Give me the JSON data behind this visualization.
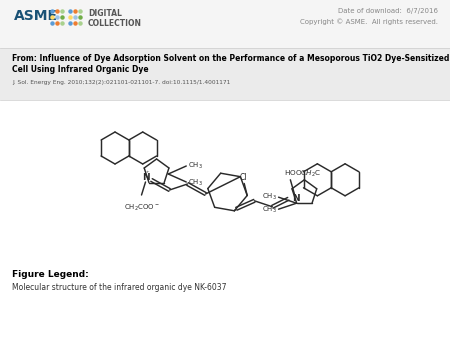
{
  "header_date": "Date of download:  6/7/2016",
  "header_copyright": "Copyright © ASME.  All rights reserved.",
  "from_text_line1": "From: Influence of Dye Adsorption Solvent on the Performance of a Mesoporous TiO2 Dye-Sensitized Solar",
  "from_text_line2": "Cell Using Infrared Organic Dye",
  "journal_ref": "J. Sol. Energy Eng. 2010;132(2):021101-021101-7. doi:10.1115/1.4001171",
  "figure_legend_title": "Figure Legend:",
  "figure_legend_text": "Molecular structure of the infrared organic dye NK-6037",
  "header_bg": "#f5f5f5",
  "title_bg": "#ebebeb",
  "body_bg": "#ffffff",
  "bond_color": "#2a2a2a",
  "header_text_color": "#888888",
  "title_text_color": "#000000",
  "journal_text_color": "#555555",
  "legend_title_color": "#000000",
  "legend_text_color": "#333333"
}
